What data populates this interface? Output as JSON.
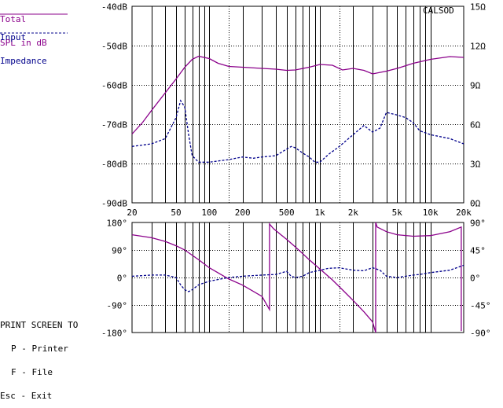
{
  "legend": {
    "spl_line1": "Total",
    "spl_line2": "SPL in dB",
    "imp_line1": "Input",
    "imp_line2": "Impedance"
  },
  "brand": "CALSOD",
  "print_menu": {
    "title": "PRINT SCREEN TO",
    "options": [
      "P - Printer",
      "F - File",
      "Esc - Exit"
    ]
  },
  "colors": {
    "spl": "#8b008b",
    "impedance": "#00008b",
    "grid": "#000000",
    "background": "#ffffff"
  },
  "chart_data": [
    {
      "type": "line",
      "x_scale": "log",
      "xlim": [
        20,
        20000
      ],
      "x_ticks": [
        {
          "value": 20,
          "label": "20"
        },
        {
          "value": 50,
          "label": "50"
        },
        {
          "value": 100,
          "label": "100"
        },
        {
          "value": 200,
          "label": "200"
        },
        {
          "value": 500,
          "label": "500"
        },
        {
          "value": 1000,
          "label": "1k"
        },
        {
          "value": 2000,
          "label": "2k"
        },
        {
          "value": 5000,
          "label": "5k"
        },
        {
          "value": 10000,
          "label": "10k"
        },
        {
          "value": 20000,
          "label": "20k"
        }
      ],
      "dotted_x_at": [
        150,
        1500
      ],
      "ylim": [
        -90,
        -40
      ],
      "y_ticks": [
        {
          "value": -40,
          "label": "-40dB"
        },
        {
          "value": -50,
          "label": "-50dB"
        },
        {
          "value": -60,
          "label": "-60dB"
        },
        {
          "value": -70,
          "label": "-70dB"
        },
        {
          "value": -80,
          "label": "-80dB"
        },
        {
          "value": -90,
          "label": "-90dB"
        }
      ],
      "y2lim": [
        0,
        15
      ],
      "y2_ticks": [
        {
          "value": 15,
          "label": "15Ω"
        },
        {
          "value": 12,
          "label": "12Ω"
        },
        {
          "value": 9,
          "label": "9Ω"
        },
        {
          "value": 6,
          "label": "6Ω"
        },
        {
          "value": 3,
          "label": "3Ω"
        },
        {
          "value": 0,
          "label": "0Ω"
        }
      ],
      "grid": true,
      "series": [
        {
          "name": "Total SPL in dB",
          "axis": "left",
          "style": "solid",
          "color": "#8b008b",
          "x": [
            20,
            25,
            30,
            40,
            50,
            60,
            70,
            80,
            100,
            120,
            150,
            200,
            300,
            400,
            500,
            600,
            800,
            1000,
            1300,
            1600,
            2000,
            2500,
            3000,
            4000,
            5000,
            7000,
            10000,
            15000,
            20000
          ],
          "y": [
            -72.5,
            -69.5,
            -66.5,
            -62,
            -58.5,
            -55.5,
            -53.5,
            -52.7,
            -53.3,
            -54.5,
            -55.3,
            -55.5,
            -55.8,
            -56,
            -56.3,
            -56.2,
            -55.5,
            -54.8,
            -55,
            -56.2,
            -55.8,
            -56.3,
            -57.2,
            -56.5,
            -55.8,
            -54.5,
            -53.5,
            -52.8,
            -53
          ]
        },
        {
          "name": "Input Impedance",
          "axis": "right",
          "style": "dashed",
          "color": "#00008b",
          "x": [
            20,
            30,
            40,
            50,
            55,
            60,
            65,
            70,
            80,
            100,
            150,
            200,
            250,
            300,
            400,
            500,
            550,
            600,
            700,
            800,
            900,
            1000,
            1200,
            1500,
            2000,
            2500,
            3000,
            3500,
            4000,
            5000,
            6000,
            7000,
            8000,
            10000,
            15000,
            20000
          ],
          "y": [
            4.3,
            4.5,
            4.9,
            6.5,
            7.8,
            7.3,
            5.2,
            3.6,
            3.1,
            3.1,
            3.3,
            3.5,
            3.4,
            3.5,
            3.6,
            4.1,
            4.3,
            4.2,
            3.8,
            3.5,
            3.1,
            3.1,
            3.7,
            4.3,
            5.2,
            5.9,
            5.4,
            5.7,
            6.9,
            6.7,
            6.5,
            6.1,
            5.5,
            5.2,
            4.9,
            4.5
          ]
        }
      ]
    },
    {
      "type": "line",
      "x_scale": "log",
      "xlim": [
        20,
        20000
      ],
      "dotted_x_at": [
        150,
        1500
      ],
      "ylim": [
        -180,
        180
      ],
      "y_ticks": [
        {
          "value": 180,
          "label": "180°"
        },
        {
          "value": 90,
          "label": "90°"
        },
        {
          "value": 0,
          "label": "0°"
        },
        {
          "value": -90,
          "label": "-90°"
        },
        {
          "value": -180,
          "label": "-180°"
        }
      ],
      "y2lim": [
        -90,
        90
      ],
      "y2_ticks": [
        {
          "value": 90,
          "label": "90°"
        },
        {
          "value": 45,
          "label": "45°"
        },
        {
          "value": 0,
          "label": "0°"
        },
        {
          "value": -45,
          "label": "-45°"
        },
        {
          "value": -90,
          "label": "-90°"
        }
      ],
      "grid": true,
      "series": [
        {
          "axis": "left",
          "style": "solid",
          "color": "#8b008b",
          "x": [
            20,
            30,
            40,
            50,
            60,
            70,
            80,
            100,
            150,
            200,
            300,
            350,
            350,
            380,
            450,
            500,
            600,
            700,
            800,
            1000,
            1300,
            1600,
            2000,
            2500,
            3000,
            3200,
            3200,
            3300,
            4000,
            5000,
            7000,
            10000,
            15000,
            19000,
            19000
          ],
          "y": [
            140,
            130,
            118,
            104,
            90,
            73,
            58,
            32,
            -5,
            -25,
            -62,
            -105,
            175,
            160,
            138,
            125,
            100,
            78,
            58,
            28,
            -8,
            -40,
            -75,
            -112,
            -145,
            -180,
            180,
            165,
            150,
            140,
            135,
            137,
            150,
            165,
            -175
          ]
        },
        {
          "axis": "right",
          "style": "dashed",
          "color": "#00008b",
          "x": [
            20,
            30,
            40,
            50,
            55,
            60,
            65,
            70,
            80,
            100,
            150,
            200,
            300,
            400,
            500,
            550,
            600,
            700,
            800,
            900,
            1000,
            1200,
            1500,
            2000,
            2500,
            3000,
            3500,
            4000,
            5000,
            6000,
            7000,
            8000,
            10000,
            15000,
            20000
          ],
          "y": [
            2,
            4,
            4,
            0,
            -12,
            -20,
            -23,
            -20,
            -12,
            -6,
            0,
            2,
            4,
            5,
            10,
            2,
            0,
            2,
            8,
            10,
            12,
            15,
            16,
            12,
            11,
            16,
            12,
            2,
            0,
            2,
            4,
            5,
            8,
            12,
            20
          ]
        }
      ]
    }
  ]
}
